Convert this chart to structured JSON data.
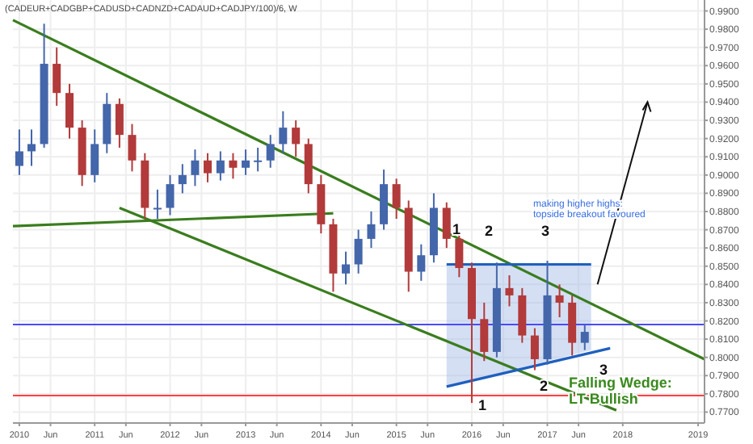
{
  "chart_data": {
    "type": "candlestick",
    "title": "(CADEUR+CADGBP+CADUSD+CADNZD+CADAUD+CADJPY/100)/6, W",
    "x": [
      "2010-01",
      "2010-03",
      "2010-05",
      "2010-07",
      "2010-09",
      "2010-11",
      "2011-01",
      "2011-03",
      "2011-05",
      "2011-07",
      "2011-09",
      "2011-11",
      "2012-01",
      "2012-03",
      "2012-05",
      "2012-07",
      "2012-09",
      "2012-11",
      "2013-01",
      "2013-03",
      "2013-05",
      "2013-07",
      "2013-09",
      "2013-11",
      "2014-01",
      "2014-03",
      "2014-05",
      "2014-07",
      "2014-09",
      "2014-11",
      "2015-01",
      "2015-03",
      "2015-05",
      "2015-07",
      "2015-09",
      "2015-11",
      "2016-01",
      "2016-03",
      "2016-05",
      "2016-07",
      "2016-09",
      "2016-11",
      "2017-01",
      "2017-03",
      "2017-05",
      "2017-07"
    ],
    "ohlc": [
      [
        0.905,
        0.925,
        0.9,
        0.913
      ],
      [
        0.913,
        0.925,
        0.905,
        0.917
      ],
      [
        0.917,
        0.983,
        0.915,
        0.961
      ],
      [
        0.961,
        0.97,
        0.938,
        0.945
      ],
      [
        0.945,
        0.95,
        0.92,
        0.926
      ],
      [
        0.926,
        0.93,
        0.894,
        0.9
      ],
      [
        0.9,
        0.925,
        0.896,
        0.917
      ],
      [
        0.917,
        0.945,
        0.912,
        0.939
      ],
      [
        0.939,
        0.942,
        0.915,
        0.922
      ],
      [
        0.922,
        0.928,
        0.902,
        0.908
      ],
      [
        0.908,
        0.912,
        0.876,
        0.882
      ],
      [
        0.882,
        0.892,
        0.876,
        0.882
      ],
      [
        0.882,
        0.9,
        0.878,
        0.895
      ],
      [
        0.895,
        0.906,
        0.89,
        0.9
      ],
      [
        0.9,
        0.914,
        0.894,
        0.908
      ],
      [
        0.908,
        0.912,
        0.896,
        0.901
      ],
      [
        0.901,
        0.913,
        0.897,
        0.908
      ],
      [
        0.908,
        0.912,
        0.898,
        0.904
      ],
      [
        0.904,
        0.914,
        0.9,
        0.908
      ],
      [
        0.908,
        0.915,
        0.902,
        0.908
      ],
      [
        0.908,
        0.922,
        0.904,
        0.917
      ],
      [
        0.917,
        0.935,
        0.912,
        0.926
      ],
      [
        0.926,
        0.93,
        0.91,
        0.917
      ],
      [
        0.917,
        0.92,
        0.89,
        0.895
      ],
      [
        0.895,
        0.9,
        0.868,
        0.873
      ],
      [
        0.873,
        0.876,
        0.836,
        0.846
      ],
      [
        0.846,
        0.858,
        0.84,
        0.851
      ],
      [
        0.851,
        0.87,
        0.846,
        0.865
      ],
      [
        0.865,
        0.88,
        0.86,
        0.873
      ],
      [
        0.873,
        0.903,
        0.87,
        0.895
      ],
      [
        0.895,
        0.898,
        0.876,
        0.882
      ],
      [
        0.882,
        0.886,
        0.836,
        0.847
      ],
      [
        0.847,
        0.862,
        0.842,
        0.856
      ],
      [
        0.856,
        0.89,
        0.852,
        0.882
      ],
      [
        0.882,
        0.885,
        0.86,
        0.865
      ],
      [
        0.865,
        0.868,
        0.844,
        0.849
      ],
      [
        0.849,
        0.852,
        0.775,
        0.821
      ],
      [
        0.821,
        0.83,
        0.798,
        0.803
      ],
      [
        0.803,
        0.852,
        0.8,
        0.838
      ],
      [
        0.838,
        0.845,
        0.828,
        0.834
      ],
      [
        0.834,
        0.838,
        0.808,
        0.812
      ],
      [
        0.812,
        0.816,
        0.793,
        0.799
      ],
      [
        0.799,
        0.853,
        0.796,
        0.834
      ],
      [
        0.834,
        0.84,
        0.822,
        0.83
      ],
      [
        0.83,
        0.834,
        0.801,
        0.808
      ],
      [
        0.808,
        0.818,
        0.804,
        0.814
      ]
    ],
    "series": [
      {
        "type": "line",
        "color": "#3a7d1e",
        "x": [
          "2009-12",
          "2019-02"
        ],
        "values": [
          0.985,
          0.799
        ]
      },
      {
        "type": "line",
        "color": "#3a7d1e",
        "x": [
          "2011-05",
          "2017-12"
        ],
        "values": [
          0.882,
          0.771
        ]
      },
      {
        "type": "line",
        "color": "#3a7d1e",
        "x": [
          "2009-12",
          "2014-03"
        ],
        "values": [
          0.872,
          0.879
        ]
      },
      {
        "type": "line",
        "color": "#1f5fbf",
        "x": [
          "2015-09",
          "2017-08"
        ],
        "values": [
          0.851,
          0.851
        ]
      },
      {
        "type": "line",
        "color": "#1f5fbf",
        "x": [
          "2015-09",
          "2017-11"
        ],
        "values": [
          0.784,
          0.805
        ]
      }
    ],
    "xlim": [
      "2009-12",
      "2019-02"
    ],
    "xticks": [
      {
        "value": "2010-01",
        "label": "2010"
      },
      {
        "value": "2010-06",
        "label": "Jun"
      },
      {
        "value": "2011-01",
        "label": "2011"
      },
      {
        "value": "2011-06",
        "label": "Jun"
      },
      {
        "value": "2012-01",
        "label": "2012"
      },
      {
        "value": "2012-06",
        "label": "Jun"
      },
      {
        "value": "2013-01",
        "label": "2013"
      },
      {
        "value": "2013-06",
        "label": "Jun"
      },
      {
        "value": "2014-01",
        "label": "2014"
      },
      {
        "value": "2014-06",
        "label": "Jun"
      },
      {
        "value": "2015-01",
        "label": "2015"
      },
      {
        "value": "2015-06",
        "label": "Jun"
      },
      {
        "value": "2016-01",
        "label": "2016"
      },
      {
        "value": "2016-06",
        "label": "Jun"
      },
      {
        "value": "2017-01",
        "label": "2017"
      },
      {
        "value": "2017-06",
        "label": "Jun"
      },
      {
        "value": "2018-01",
        "label": "2018"
      },
      {
        "value": "2019-01",
        "label": "2019"
      }
    ],
    "ylim": [
      0.764,
      0.996
    ],
    "yticks": [
      {
        "value": 0.77,
        "label": "0.7700"
      },
      {
        "value": 0.78,
        "label": "0.7800"
      },
      {
        "value": 0.79,
        "label": "0.7900"
      },
      {
        "value": 0.8,
        "label": "0.8000"
      },
      {
        "value": 0.81,
        "label": "0.8100"
      },
      {
        "value": 0.82,
        "label": "0.8200"
      },
      {
        "value": 0.83,
        "label": "0.8300"
      },
      {
        "value": 0.84,
        "label": "0.8400"
      },
      {
        "value": 0.85,
        "label": "0.8500"
      },
      {
        "value": 0.86,
        "label": "0.8600"
      },
      {
        "value": 0.87,
        "label": "0.8700"
      },
      {
        "value": 0.88,
        "label": "0.8800"
      },
      {
        "value": 0.89,
        "label": "0.8900"
      },
      {
        "value": 0.9,
        "label": "0.9000"
      },
      {
        "value": 0.91,
        "label": "0.9100"
      },
      {
        "value": 0.92,
        "label": "0.9200"
      },
      {
        "value": 0.93,
        "label": "0.9300"
      },
      {
        "value": 0.94,
        "label": "0.9400"
      },
      {
        "value": 0.95,
        "label": "0.9500"
      },
      {
        "value": 0.96,
        "label": "0.9600"
      },
      {
        "value": 0.97,
        "label": "0.9700"
      },
      {
        "value": 0.98,
        "label": "0.9800"
      },
      {
        "value": 0.99,
        "label": "0.9900"
      }
    ],
    "ref_lines": [
      {
        "axis": "y",
        "value": 0.818,
        "color": "#4a4aff"
      },
      {
        "axis": "y",
        "value": 0.779,
        "color": "#ff4040"
      }
    ],
    "annotations": [
      "1",
      "2",
      "3",
      "1",
      "2",
      "3",
      "making higher highs:\ntopside breakout favoured",
      "Falling Wedge:\nLT Bullish"
    ],
    "grid": true
  }
}
